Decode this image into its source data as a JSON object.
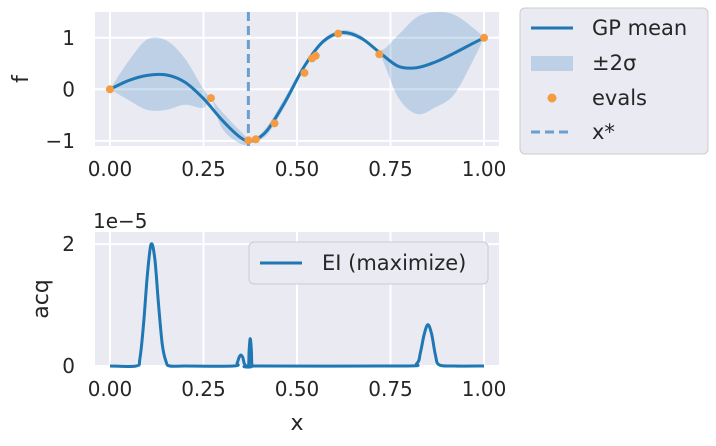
{
  "chart_data": [
    {
      "type": "line",
      "xlabel": "",
      "ylabel": "f",
      "xlim": [
        -0.04,
        1.04
      ],
      "ylim": [
        -1.1,
        1.5
      ],
      "xticks": [
        0.0,
        0.25,
        0.5,
        0.75,
        1.0
      ],
      "xtick_labels": [
        "0.00",
        "0.25",
        "0.50",
        "0.75",
        "1.00"
      ],
      "yticks": [
        1,
        0,
        -1
      ],
      "ytick_labels": [
        "1",
        "0",
        "−1"
      ],
      "grid": true,
      "legend_placement": "outside-right",
      "mean": {
        "name": "GP mean",
        "color": "#1f77b4",
        "x": [
          0.0,
          0.05,
          0.1,
          0.15,
          0.2,
          0.25,
          0.3,
          0.35,
          0.38,
          0.42,
          0.47,
          0.52,
          0.57,
          0.62,
          0.67,
          0.72,
          0.77,
          0.82,
          0.87,
          0.92,
          0.97,
          1.0
        ],
        "y": [
          0.0,
          0.17,
          0.27,
          0.28,
          0.14,
          -0.18,
          -0.6,
          -0.94,
          -1.0,
          -0.8,
          -0.22,
          0.45,
          0.93,
          1.1,
          1.0,
          0.72,
          0.45,
          0.42,
          0.53,
          0.7,
          0.89,
          1.0
        ]
      },
      "band": {
        "name": "±2σ",
        "color": "#9dbbe0",
        "x": [
          0.0,
          0.05,
          0.1,
          0.15,
          0.2,
          0.25,
          0.27,
          0.3,
          0.35,
          0.38,
          0.42,
          0.47,
          0.52,
          0.57,
          0.62,
          0.67,
          0.72,
          0.77,
          0.82,
          0.87,
          0.92,
          0.97,
          1.0
        ],
        "upper": [
          0.0,
          0.55,
          0.97,
          0.95,
          0.6,
          0.0,
          -0.17,
          -0.44,
          -0.82,
          -0.97,
          -0.72,
          -0.13,
          0.5,
          0.97,
          1.15,
          1.05,
          0.75,
          1.05,
          1.4,
          1.5,
          1.45,
          1.2,
          1.0
        ],
        "lower": [
          0.0,
          -0.21,
          -0.4,
          -0.4,
          -0.3,
          -0.36,
          -0.17,
          -0.76,
          -1.06,
          -1.03,
          -0.88,
          -0.3,
          0.4,
          0.88,
          1.05,
          0.95,
          0.69,
          -0.15,
          -0.48,
          -0.35,
          -0.1,
          0.55,
          1.0
        ]
      },
      "evals": {
        "name": "evals",
        "color": "#f39c42",
        "x": [
          0.0,
          0.27,
          0.37,
          0.39,
          0.44,
          0.52,
          0.54,
          0.55,
          0.61,
          0.72,
          1.0
        ],
        "y": [
          0.0,
          -0.17,
          -0.99,
          -0.97,
          -0.66,
          0.32,
          0.6,
          0.65,
          1.08,
          0.68,
          1.0
        ]
      },
      "x_star": {
        "name": "x*",
        "x": 0.37,
        "color": "#6a9fcf"
      }
    },
    {
      "type": "line",
      "xlabel": "x",
      "ylabel": "acq",
      "xlim": [
        -0.04,
        1.04
      ],
      "ylim": [
        0.0,
        2.2
      ],
      "yscale_label": "1e−5",
      "xticks": [
        0.0,
        0.25,
        0.5,
        0.75,
        1.0
      ],
      "xtick_labels": [
        "0.00",
        "0.25",
        "0.50",
        "0.75",
        "1.00"
      ],
      "yticks": [
        2,
        0
      ],
      "ytick_labels": [
        "2",
        "0"
      ],
      "grid": true,
      "legend_placement": "top-right",
      "series": [
        {
          "name": "EI (maximize)",
          "color": "#1f77b4",
          "x": [
            0.0,
            0.07,
            0.08,
            0.09,
            0.1,
            0.11,
            0.12,
            0.13,
            0.14,
            0.15,
            0.16,
            0.2,
            0.33,
            0.34,
            0.345,
            0.35,
            0.355,
            0.36,
            0.37,
            0.372,
            0.375,
            0.378,
            0.38,
            0.39,
            0.78,
            0.82,
            0.83,
            0.84,
            0.85,
            0.86,
            0.87,
            0.88,
            0.92,
            1.0
          ],
          "y": [
            0.0,
            0.0,
            0.12,
            0.7,
            1.5,
            2.0,
            1.75,
            1.0,
            0.35,
            0.07,
            0.0,
            0.0,
            0.0,
            0.05,
            0.14,
            0.18,
            0.14,
            0.03,
            0.0,
            0.25,
            0.45,
            0.25,
            0.0,
            0.0,
            0.0,
            0.04,
            0.22,
            0.52,
            0.68,
            0.52,
            0.18,
            0.02,
            0.0,
            0.0
          ]
        }
      ]
    }
  ]
}
